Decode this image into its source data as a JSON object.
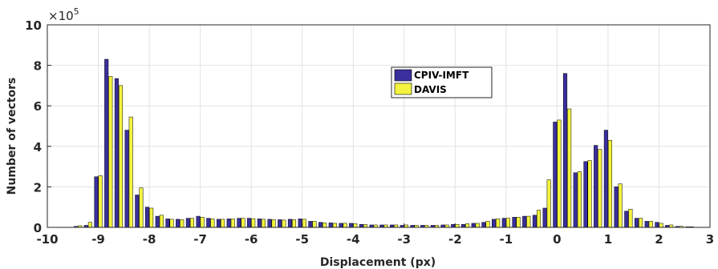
{
  "chart_data": {
    "type": "bar",
    "xlabel": "Displacement (px)",
    "ylabel": "Number of vectors",
    "y_multiplier_label": "×10",
    "y_multiplier_exponent": "5",
    "xlim": [
      -10,
      3
    ],
    "ylim": [
      0,
      10
    ],
    "x_ticks": [
      -10,
      -9,
      -8,
      -7,
      -6,
      -5,
      -4,
      -3,
      -2,
      -1,
      0,
      1,
      2,
      3
    ],
    "x_tick_labels": [
      "-10",
      "-9",
      "-8",
      "-7",
      "-6",
      "-5",
      "-4",
      "-3",
      "-2",
      "-1",
      "0",
      "1",
      "2",
      "3"
    ],
    "y_ticks": [
      0,
      2,
      4,
      6,
      8,
      10
    ],
    "y_tick_labels": [
      "0",
      "2",
      "4",
      "6",
      "8",
      "10"
    ],
    "grid": true,
    "legend_position": "upper-center",
    "bin_width": 0.2,
    "x": [
      -9.4,
      -9.2,
      -9.0,
      -8.8,
      -8.6,
      -8.4,
      -8.2,
      -8.0,
      -7.8,
      -7.6,
      -7.4,
      -7.2,
      -7.0,
      -6.8,
      -6.6,
      -6.4,
      -6.2,
      -6.0,
      -5.8,
      -5.6,
      -5.4,
      -5.2,
      -5.0,
      -4.8,
      -4.6,
      -4.4,
      -4.2,
      -4.0,
      -3.8,
      -3.6,
      -3.4,
      -3.2,
      -3.0,
      -2.8,
      -2.6,
      -2.4,
      -2.2,
      -2.0,
      -1.8,
      -1.6,
      -1.4,
      -1.2,
      -1.0,
      -0.8,
      -0.6,
      -0.4,
      -0.2,
      0.0,
      0.2,
      0.4,
      0.6,
      0.8,
      1.0,
      1.2,
      1.4,
      1.6,
      1.8,
      2.0,
      2.2,
      2.4,
      2.6
    ],
    "series": [
      {
        "name": "CPIV-IMFT",
        "color": "#3a2f9c",
        "values": [
          0.05,
          0.1,
          2.5,
          8.3,
          7.35,
          4.8,
          1.6,
          1.0,
          0.55,
          0.42,
          0.4,
          0.45,
          0.55,
          0.45,
          0.4,
          0.42,
          0.45,
          0.45,
          0.42,
          0.4,
          0.38,
          0.4,
          0.42,
          0.3,
          0.25,
          0.22,
          0.2,
          0.2,
          0.15,
          0.12,
          0.12,
          0.12,
          0.1,
          0.1,
          0.1,
          0.1,
          0.12,
          0.15,
          0.15,
          0.2,
          0.25,
          0.4,
          0.45,
          0.5,
          0.55,
          0.6,
          0.95,
          5.2,
          7.6,
          2.7,
          3.25,
          4.05,
          4.8,
          2.0,
          0.8,
          0.45,
          0.3,
          0.25,
          0.1,
          0.05,
          0.03
        ]
      },
      {
        "name": "DAVIS",
        "color": "#f3f340",
        "values": [
          0.08,
          0.25,
          2.55,
          7.45,
          7.0,
          5.45,
          1.95,
          0.95,
          0.6,
          0.4,
          0.38,
          0.45,
          0.5,
          0.42,
          0.4,
          0.42,
          0.45,
          0.43,
          0.4,
          0.38,
          0.36,
          0.38,
          0.4,
          0.3,
          0.22,
          0.2,
          0.2,
          0.18,
          0.14,
          0.12,
          0.12,
          0.12,
          0.12,
          0.1,
          0.1,
          0.1,
          0.12,
          0.15,
          0.18,
          0.2,
          0.3,
          0.42,
          0.45,
          0.5,
          0.55,
          0.85,
          2.35,
          5.3,
          5.85,
          2.75,
          3.3,
          3.85,
          4.3,
          2.15,
          0.9,
          0.45,
          0.3,
          0.2,
          0.12,
          0.05,
          0.03
        ]
      }
    ]
  }
}
